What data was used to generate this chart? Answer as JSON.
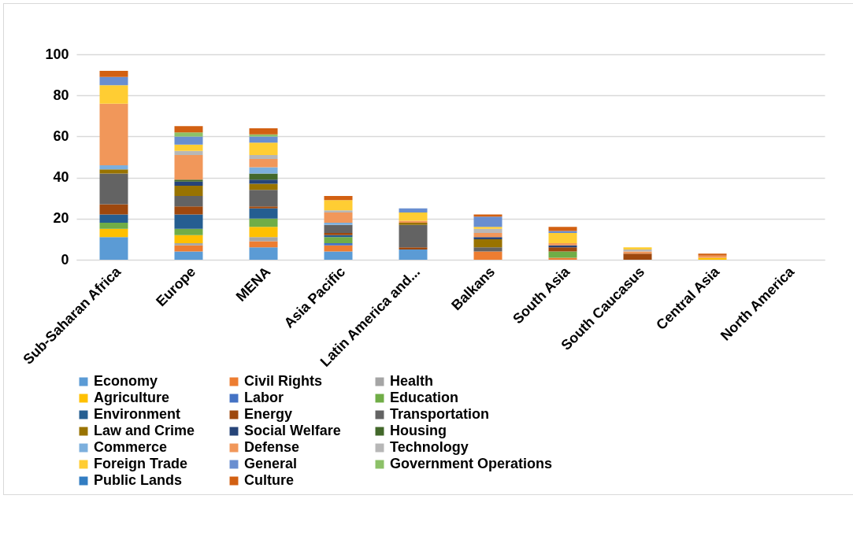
{
  "chart_data": {
    "type": "bar",
    "stacked": true,
    "categories": [
      "Sub-Saharan Africa",
      "Europe",
      "MENA",
      "Asia Pacific",
      "Latin America and...",
      "Balkans",
      "South Asia",
      "South Caucasus",
      "Central Asia",
      "North America"
    ],
    "ylim": [
      0,
      100
    ],
    "yticks": [
      0,
      20,
      40,
      60,
      80,
      100
    ],
    "grid": "y",
    "legend": "bottom",
    "series": [
      {
        "name": "Economy",
        "color": "#5b9bd5",
        "values": [
          11,
          4,
          6,
          4,
          5,
          0,
          0,
          0,
          0,
          0
        ]
      },
      {
        "name": "Civil Rights",
        "color": "#ed7d31",
        "values": [
          0,
          3,
          3,
          3,
          0,
          4,
          1,
          0,
          0,
          0
        ]
      },
      {
        "name": "Health",
        "color": "#a5a5a5",
        "values": [
          0,
          1,
          2,
          0,
          0,
          0,
          0,
          0,
          0,
          0
        ]
      },
      {
        "name": "Agriculture",
        "color": "#ffc000",
        "values": [
          4,
          4,
          5,
          0,
          0,
          0,
          0,
          0,
          1,
          0
        ]
      },
      {
        "name": "Labor",
        "color": "#4472c4",
        "values": [
          0,
          0,
          0,
          1,
          0,
          0,
          0,
          0,
          0,
          0
        ]
      },
      {
        "name": "Education",
        "color": "#70ad47",
        "values": [
          3,
          3,
          4,
          3,
          0,
          0,
          3,
          0,
          0,
          0
        ]
      },
      {
        "name": "Environment",
        "color": "#255e91",
        "values": [
          4,
          7,
          5,
          1,
          0,
          0,
          0,
          0,
          0,
          0
        ]
      },
      {
        "name": "Energy",
        "color": "#9e480e",
        "values": [
          5,
          4,
          1,
          1,
          1,
          0,
          2,
          3,
          0,
          0
        ]
      },
      {
        "name": "Transportation",
        "color": "#636363",
        "values": [
          15,
          5,
          8,
          4,
          11,
          2,
          0,
          0,
          0,
          0
        ]
      },
      {
        "name": "Law and Crime",
        "color": "#997300",
        "values": [
          2,
          5,
          3,
          0,
          1,
          4,
          0,
          0,
          0,
          0
        ]
      },
      {
        "name": "Social Welfare",
        "color": "#264478",
        "values": [
          0,
          2,
          2,
          0,
          0,
          1,
          1,
          0,
          0,
          0
        ]
      },
      {
        "name": "Housing",
        "color": "#43682b",
        "values": [
          0,
          1,
          3,
          0,
          0,
          0,
          0,
          0,
          0,
          0
        ]
      },
      {
        "name": "Commerce",
        "color": "#7cafdd",
        "values": [
          2,
          0,
          3,
          1,
          0,
          0,
          0,
          0,
          0,
          0
        ]
      },
      {
        "name": "Defense",
        "color": "#f1975a",
        "values": [
          30,
          12,
          4,
          5,
          1,
          2,
          1,
          1,
          1,
          0
        ]
      },
      {
        "name": "Technology",
        "color": "#b7b7b7",
        "values": [
          0,
          2,
          2,
          1,
          0,
          2,
          0,
          1,
          0,
          0
        ]
      },
      {
        "name": "Foreign Trade",
        "color": "#ffcd33",
        "values": [
          9,
          3,
          6,
          5,
          4,
          1,
          5,
          1,
          0,
          0
        ]
      },
      {
        "name": "General",
        "color": "#698ed0",
        "values": [
          4,
          4,
          3,
          0,
          2,
          5,
          1,
          0,
          0,
          0
        ]
      },
      {
        "name": "Government Operations",
        "color": "#8cc168",
        "values": [
          0,
          2,
          1,
          0,
          0,
          0,
          0,
          0,
          0,
          0
        ]
      },
      {
        "name": "Public Lands",
        "color": "#327dc2",
        "values": [
          0,
          0,
          0,
          0,
          0,
          0,
          0,
          0,
          0,
          0
        ]
      },
      {
        "name": "Culture",
        "color": "#d26012",
        "values": [
          3,
          3,
          3,
          2,
          0,
          1,
          2,
          0,
          1,
          0
        ]
      }
    ]
  }
}
